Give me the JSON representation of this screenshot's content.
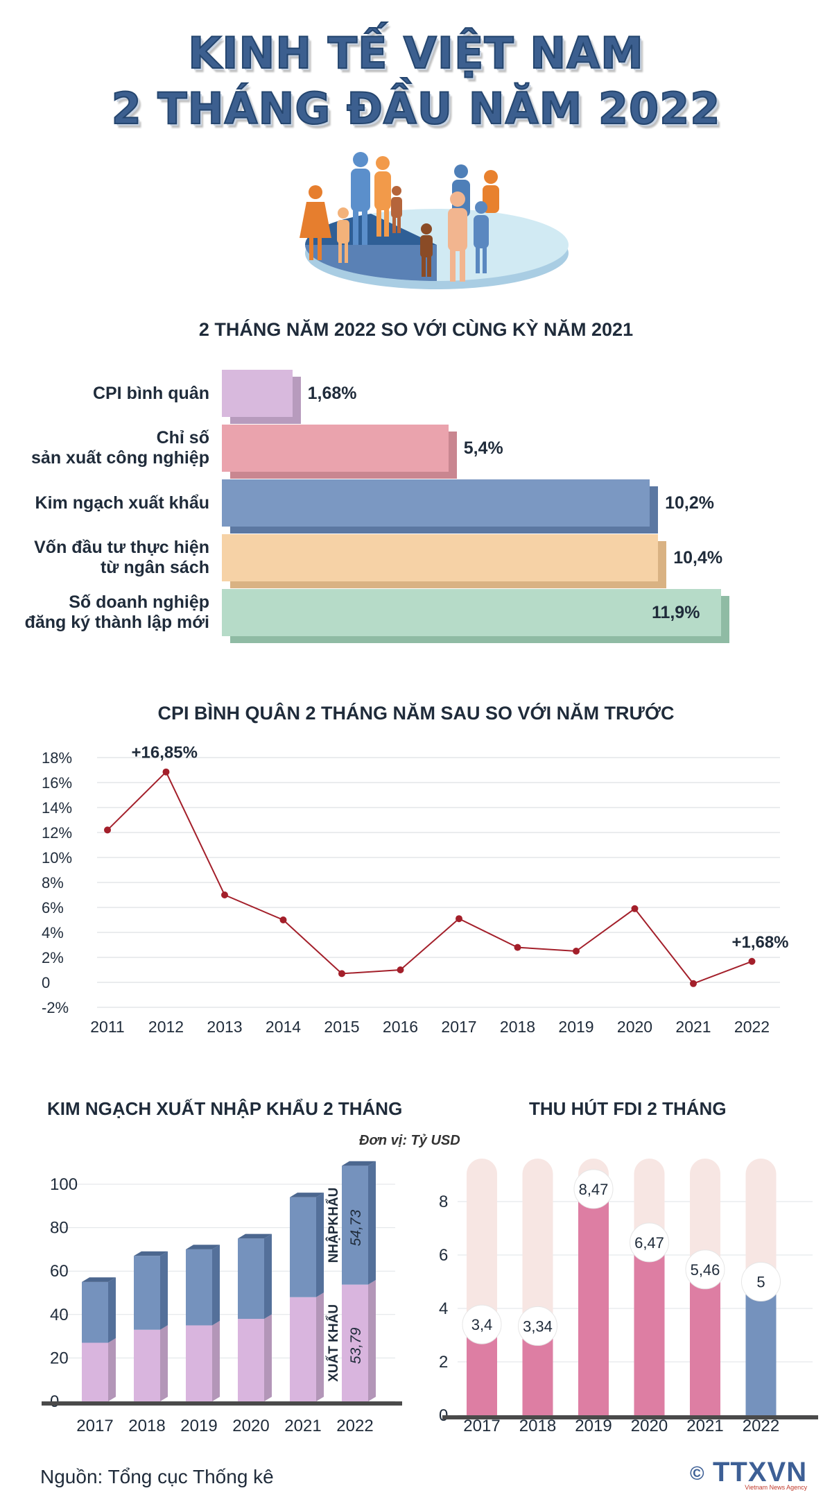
{
  "header": {
    "title_line1": "KINH TẾ VIỆT NAM",
    "title_line2": "2 THÁNG ĐẦU NĂM 2022"
  },
  "comparison": {
    "title": "2 THÁNG NĂM 2022 SO VỚI CÙNG KỲ NĂM 2021",
    "items": [
      {
        "label_lines": [
          "CPI bình quân"
        ],
        "value": 1.68,
        "value_label": "1,68%",
        "color": "#d8b9dd",
        "side": "#b79bbd"
      },
      {
        "label_lines": [
          "Chỉ số",
          "sản xuất công nghiệp"
        ],
        "value": 5.4,
        "value_label": "5,4%",
        "color": "#eaa3ad",
        "side": "#c98690"
      },
      {
        "label_lines": [
          "Kim ngạch xuất khẩu"
        ],
        "value": 10.2,
        "value_label": "10,2%",
        "color": "#7b98c2",
        "side": "#5c78a2"
      },
      {
        "label_lines": [
          "Vốn đầu tư thực hiện",
          "từ ngân sách"
        ],
        "value": 10.4,
        "value_label": "10,4%",
        "color": "#f6d2a6",
        "side": "#d9b283"
      },
      {
        "label_lines": [
          "Số doanh nghiệp",
          "đăng ký thành lập mới"
        ],
        "value": 11.9,
        "value_label": "11,9%",
        "color": "#b6dbc8",
        "side": "#8fbba4"
      }
    ]
  },
  "chart_data": [
    {
      "type": "line",
      "title": "CPI BÌNH QUÂN 2 THÁNG NĂM SAU SO VỚI NĂM TRƯỚC",
      "x": [
        "2011",
        "2012",
        "2013",
        "2014",
        "2015",
        "2016",
        "2017",
        "2018",
        "2019",
        "2020",
        "2021",
        "2022"
      ],
      "values": [
        12.2,
        16.85,
        7.0,
        5.0,
        0.7,
        1.0,
        5.1,
        2.8,
        2.5,
        5.9,
        -0.1,
        1.68
      ],
      "annotations": [
        {
          "index": 1,
          "text": "+16,85%"
        },
        {
          "index": 11,
          "text": "+1,68%"
        }
      ],
      "yticks": [
        "18%",
        "16%",
        "14%",
        "12%",
        "10%",
        "8%",
        "6%",
        "4%",
        "2%",
        "0",
        "-2%"
      ],
      "ylim": [
        -2,
        18
      ],
      "color": "#a31f2a",
      "grid": true
    },
    {
      "type": "bar",
      "stacked": true,
      "title": "KIM NGẠCH XUẤT NHẬP KHẨU 2 THÁNG",
      "unit": "Đơn vị: Tỷ USD",
      "categories": [
        "2017",
        "2018",
        "2019",
        "2020",
        "2021",
        "2022"
      ],
      "yticks": [
        "100",
        "80",
        "60",
        "40",
        "20",
        "0"
      ],
      "ylim": [
        0,
        100
      ],
      "series": [
        {
          "name": "XUẤT KHẨU",
          "values": [
            27,
            33,
            35,
            38,
            48,
            53.79
          ],
          "color": "#d9b5de",
          "side": "#b396b8"
        },
        {
          "name": "NHẬPKHẨU",
          "values": [
            28,
            34,
            35,
            37,
            46,
            54.73
          ],
          "color": "#7592bd",
          "side": "#54709a"
        }
      ],
      "value_labels": {
        "export": "53,79",
        "import": "54,73"
      }
    },
    {
      "type": "bar",
      "title": "THU HÚT FDI 2 THÁNG",
      "categories": [
        "2017",
        "2018",
        "2019",
        "2020",
        "2021",
        "2022"
      ],
      "values": [
        3.4,
        3.34,
        8.47,
        6.47,
        5.46,
        5
      ],
      "value_labels": [
        "3,4",
        "3,34",
        "8,47",
        "6,47",
        "5,46",
        "5"
      ],
      "yticks": [
        "8",
        "6",
        "4",
        "2",
        "0"
      ],
      "ylim": [
        0,
        9.5
      ],
      "colors": [
        "#dd7ea3",
        "#dd7ea3",
        "#dd7ea3",
        "#dd7ea3",
        "#dd7ea3",
        "#7592bd"
      ],
      "track_color": "#f7e6e3"
    }
  ],
  "footer": {
    "source": "Nguồn: Tổng cục Thống kê",
    "copyright": "©",
    "logo": "TTXVN",
    "logo_sub": "Vietnam News Agency"
  }
}
